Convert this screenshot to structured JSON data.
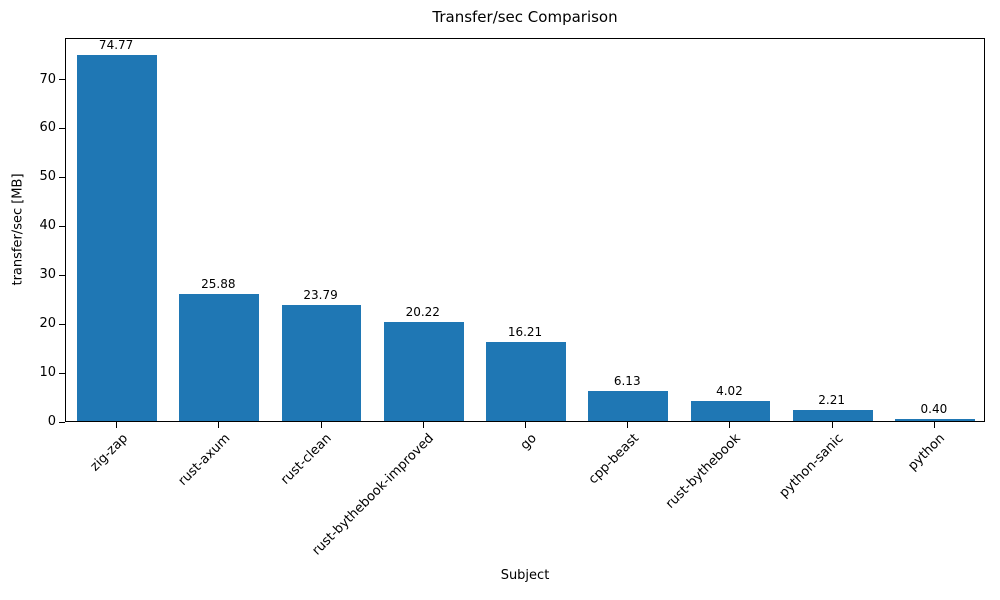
{
  "chart_data": {
    "type": "bar",
    "title": "Transfer/sec Comparison",
    "xlabel": "Subject",
    "ylabel": "transfer/sec [MB]",
    "categories": [
      "zig-zap",
      "rust-axum",
      "rust-clean",
      "rust-bythebook-improved",
      "go",
      "cpp-beast",
      "rust-bythebook",
      "python-sanic",
      "python"
    ],
    "values": [
      74.77,
      25.88,
      23.79,
      20.22,
      16.21,
      6.13,
      4.02,
      2.21,
      0.4
    ],
    "value_labels": [
      "74.77",
      "25.88",
      "23.79",
      "20.22",
      "16.21",
      "6.13",
      "4.02",
      "2.21",
      "0.40"
    ],
    "bar_color": "#1f77b4",
    "ylim": [
      0,
      78.5
    ],
    "yticks": [
      0,
      10,
      20,
      30,
      40,
      50,
      60,
      70
    ],
    "grid": false,
    "legend_position": "none"
  }
}
